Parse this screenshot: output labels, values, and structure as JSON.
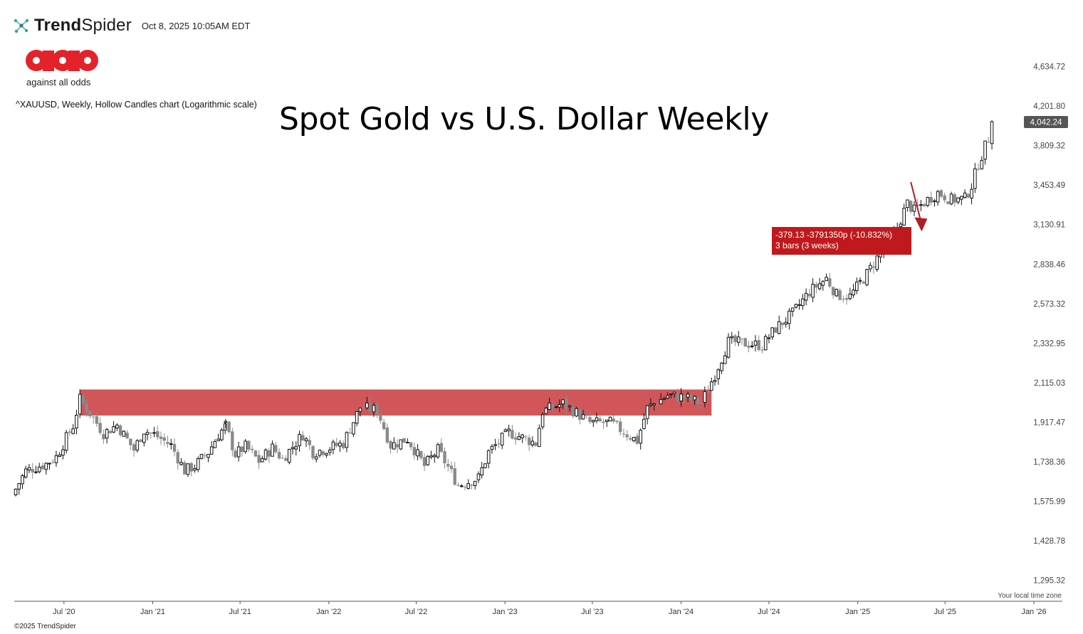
{
  "header": {
    "brand_bold": "Trend",
    "brand_light": "Spider",
    "datetime": "Oct 8, 2025 10:05AM EDT",
    "icon": "trendspider-network-icon"
  },
  "logo": {
    "caption": "against all odds",
    "color": "#e3222a",
    "icon": "against-all-odds-logo"
  },
  "chart_info": "^XAUUSD, Weekly, Hollow Candles chart (Logarithmic scale)",
  "timezone_note": "Your local time zone",
  "copyright": "©2025 TrendSpider",
  "measurement": {
    "line1": "-379.13 -3791350p (-10.832%)",
    "line2": "3 bars (3 weeks)",
    "color": "#c0191d"
  },
  "price_badge": "4,042.24",
  "chart_data": {
    "type": "candlestick",
    "title": "Spot Gold vs U.S. Dollar Weekly",
    "scale": "log",
    "ylim": [
      1230,
      4900
    ],
    "y_ticks": [
      {
        "value": 4634.72,
        "label": "4,634.72"
      },
      {
        "value": 4201.8,
        "label": "4,201.80"
      },
      {
        "value": 3809.32,
        "label": "3,809.32"
      },
      {
        "value": 3453.49,
        "label": "3,453.49"
      },
      {
        "value": 3130.91,
        "label": "3,130.91"
      },
      {
        "value": 2838.46,
        "label": "2,838.46"
      },
      {
        "value": 2573.32,
        "label": "2,573.32"
      },
      {
        "value": 2332.95,
        "label": "2,332.95"
      },
      {
        "value": 2115.03,
        "label": "2,115.03"
      },
      {
        "value": 1917.47,
        "label": "1,917.47"
      },
      {
        "value": 1738.36,
        "label": "1,738.36"
      },
      {
        "value": 1575.99,
        "label": "1,575.99"
      },
      {
        "value": 1428.78,
        "label": "1,428.78"
      },
      {
        "value": 1295.32,
        "label": "1,295.32"
      }
    ],
    "x_ticks": [
      {
        "date": "2020-07-01",
        "label": "Jul '20"
      },
      {
        "date": "2021-01-01",
        "label": "Jan '21"
      },
      {
        "date": "2021-07-01",
        "label": "Jul '21"
      },
      {
        "date": "2022-01-01",
        "label": "Jan '22"
      },
      {
        "date": "2022-07-01",
        "label": "Jul '22"
      },
      {
        "date": "2023-01-01",
        "label": "Jan '23"
      },
      {
        "date": "2023-07-01",
        "label": "Jul '23"
      },
      {
        "date": "2024-01-01",
        "label": "Jan '24"
      },
      {
        "date": "2024-07-01",
        "label": "Jul '24"
      },
      {
        "date": "2025-01-01",
        "label": "Jan '25"
      },
      {
        "date": "2025-07-01",
        "label": "Jul '25"
      },
      {
        "date": "2026-01-01",
        "label": "Jan '26"
      }
    ],
    "xlim": [
      "2020-03-20",
      "2026-03-01"
    ],
    "last_price": 4042.24,
    "resistance_zone": {
      "from_date": "2020-08-03",
      "to_date": "2024-03-04",
      "low": 1950,
      "high": 2080,
      "color": "#c9383c"
    },
    "measure_arrow": {
      "from_date": "2025-04-21",
      "from_price": 3480,
      "to_date": "2025-05-12",
      "to_price": 3100,
      "color": "#b01e24"
    },
    "close_anchors": [
      [
        "2020-03-23",
        1625
      ],
      [
        "2020-04-13",
        1700
      ],
      [
        "2020-05-25",
        1730
      ],
      [
        "2020-06-15",
        1760
      ],
      [
        "2020-07-20",
        1900
      ],
      [
        "2020-08-03",
        2030
      ],
      [
        "2020-08-24",
        1960
      ],
      [
        "2020-09-21",
        1865
      ],
      [
        "2020-10-19",
        1905
      ],
      [
        "2020-11-23",
        1790
      ],
      [
        "2020-12-14",
        1880
      ],
      [
        "2021-01-04",
        1860
      ],
      [
        "2021-02-08",
        1810
      ],
      [
        "2021-03-08",
        1700
      ],
      [
        "2021-03-29",
        1720
      ],
      [
        "2021-04-26",
        1780
      ],
      [
        "2021-05-17",
        1860
      ],
      [
        "2021-06-01",
        1900
      ],
      [
        "2021-06-21",
        1770
      ],
      [
        "2021-07-12",
        1805
      ],
      [
        "2021-08-09",
        1740
      ],
      [
        "2021-09-06",
        1800
      ],
      [
        "2021-09-27",
        1750
      ],
      [
        "2021-11-08",
        1860
      ],
      [
        "2021-11-29",
        1780
      ],
      [
        "2022-01-03",
        1800
      ],
      [
        "2022-01-31",
        1820
      ],
      [
        "2022-03-07",
        1990
      ],
      [
        "2022-04-11",
        1975
      ],
      [
        "2022-05-09",
        1810
      ],
      [
        "2022-06-13",
        1840
      ],
      [
        "2022-07-18",
        1720
      ],
      [
        "2022-08-15",
        1790
      ],
      [
        "2022-09-26",
        1640
      ],
      [
        "2022-11-07",
        1670
      ],
      [
        "2022-11-28",
        1780
      ],
      [
        "2023-01-09",
        1870
      ],
      [
        "2023-02-13",
        1840
      ],
      [
        "2023-03-06",
        1820
      ],
      [
        "2023-03-20",
        1970
      ],
      [
        "2023-05-01",
        2010
      ],
      [
        "2023-06-26",
        1915
      ],
      [
        "2023-08-07",
        1915
      ],
      [
        "2023-10-02",
        1830
      ],
      [
        "2023-10-23",
        1985
      ],
      [
        "2023-12-04",
        2050
      ],
      [
        "2024-01-08",
        2040
      ],
      [
        "2024-02-12",
        2010
      ],
      [
        "2024-03-11",
        2160
      ],
      [
        "2024-04-08",
        2340
      ],
      [
        "2024-05-20",
        2330
      ],
      [
        "2024-06-17",
        2320
      ],
      [
        "2024-07-15",
        2420
      ],
      [
        "2024-08-19",
        2510
      ],
      [
        "2024-09-23",
        2650
      ],
      [
        "2024-10-28",
        2740
      ],
      [
        "2024-11-18",
        2630
      ],
      [
        "2024-12-16",
        2620
      ],
      [
        "2025-01-20",
        2770
      ],
      [
        "2025-02-17",
        2920
      ],
      [
        "2025-03-17",
        3050
      ],
      [
        "2025-04-14",
        3300
      ],
      [
        "2025-04-28",
        3240
      ],
      [
        "2025-05-26",
        3330
      ],
      [
        "2025-06-16",
        3390
      ],
      [
        "2025-07-14",
        3330
      ],
      [
        "2025-08-11",
        3340
      ],
      [
        "2025-08-25",
        3450
      ],
      [
        "2025-09-08",
        3640
      ],
      [
        "2025-09-29",
        3880
      ],
      [
        "2025-10-06",
        4042
      ]
    ]
  }
}
